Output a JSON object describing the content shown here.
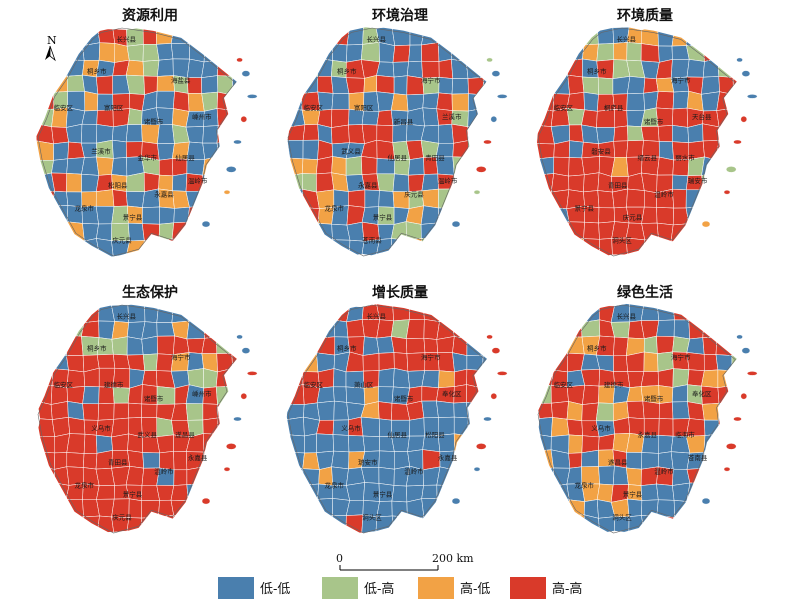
{
  "panels": [
    {
      "title": "资源利用",
      "labels": [
        "长兴县",
        "桐乡市",
        "海盐县",
        "临安区",
        "富阳区",
        "诸暨市",
        "嵊州市",
        "兰溪市",
        "金华市",
        "仙居县",
        "松阳县",
        "龙泉市",
        "景宁县",
        "永嘉县",
        "温岭市",
        "庆元县"
      ]
    },
    {
      "title": "环境治理",
      "labels": [
        "长兴县",
        "桐乡市",
        "海宁市",
        "临安区",
        "富阳区",
        "新昌县",
        "兰溪市",
        "武义县",
        "仙居县",
        "青田县",
        "永嘉县",
        "龙泉市",
        "景宁县",
        "庆元县",
        "温岭市",
        "苍南县"
      ]
    },
    {
      "title": "环境质量",
      "labels": [
        "长兴县",
        "桐乡市",
        "海宁市",
        "临安区",
        "桐庐县",
        "诸暨市",
        "天台县",
        "磐安县",
        "缙云县",
        "丽水市",
        "青田县",
        "景宁县",
        "庆元县",
        "温岭市",
        "瑞安市",
        "洞头区"
      ]
    },
    {
      "title": "生态保护",
      "labels": [
        "长兴县",
        "桐乡市",
        "海宁市",
        "临安区",
        "建德市",
        "诸暨市",
        "嵊州市",
        "义乌市",
        "武义县",
        "遂昌县",
        "青田县",
        "龙泉市",
        "景宁县",
        "温岭市",
        "永嘉县",
        "庆元县"
      ]
    },
    {
      "title": "增长质量",
      "labels": [
        "长兴县",
        "桐乡市",
        "海宁市",
        "临安区",
        "萧山区",
        "诸暨市",
        "奉化区",
        "义乌市",
        "仙居县",
        "松阳县",
        "瑞安市",
        "龙泉市",
        "景宁县",
        "温岭市",
        "永嘉县",
        "洞头区"
      ]
    },
    {
      "title": "绿色生活",
      "labels": [
        "长兴县",
        "桐乡市",
        "海宁市",
        "临安区",
        "建德市",
        "诸暨市",
        "奉化区",
        "义乌市",
        "永嘉县",
        "临海市",
        "遂昌县",
        "龙泉市",
        "景宁县",
        "温岭市",
        "苍南县",
        "洞头区"
      ]
    }
  ],
  "north_arrow": {
    "label": "N"
  },
  "scale_bar": {
    "start": "0",
    "end": "200 km"
  },
  "legend": [
    {
      "label": "低-低",
      "color": "#4a7fae"
    },
    {
      "label": "低-高",
      "color": "#a8c58a"
    },
    {
      "label": "高-低",
      "color": "#f2a245"
    },
    {
      "label": "高-高",
      "color": "#d93a2a"
    }
  ],
  "cluster_grids": [
    [
      "HL",
      "HH",
      "LH",
      "LL",
      "HH",
      "HH",
      "LH",
      "HH",
      "HL",
      "LL",
      "HH",
      "LH",
      "HL",
      "LL",
      "LL",
      "LL",
      "LL",
      "LL",
      "HL",
      "HL",
      "LH",
      "LH",
      "LL",
      "LL",
      "LL",
      "LL",
      "HL",
      "HH",
      "HL",
      "LL",
      "LL",
      "HL",
      "LL",
      "HH",
      "HL",
      "LH",
      "LL",
      "LL",
      "LL",
      "LL",
      "HH",
      "HL",
      "HL",
      "HL",
      "LH",
      "LL",
      "HH",
      "LL",
      "LH",
      "HH",
      "HL",
      "LH",
      "HH",
      "LL",
      "LH",
      "LL",
      "HH",
      "LH",
      "LL",
      "HL",
      "LL",
      "HH",
      "HH",
      "LL",
      "LL",
      "HH",
      "HL",
      "LH",
      "HH",
      "HL",
      "LH",
      "HL",
      "LL",
      "LL",
      "HH",
      "HH",
      "LH",
      "LL",
      "LL",
      "HL",
      "LL",
      "LL",
      "HH",
      "HL",
      "HH",
      "HH",
      "LL",
      "LL",
      "LL",
      "LL",
      "LL",
      "HL",
      "LL",
      "LH",
      "LL",
      "LL",
      "HH",
      "HL",
      "HL",
      "LL",
      "HH",
      "LL",
      "LH",
      "LL",
      "HH",
      "HH",
      "LL",
      "HL",
      "LL",
      "LL",
      "LL",
      "LL",
      "LH",
      "LL",
      "LL",
      "LL",
      "HL",
      "LL",
      "LL",
      "LH",
      "HH",
      "HH",
      "LL",
      "HL",
      "LL",
      "LL",
      "LL",
      "HH",
      "HL",
      "LL",
      "HH",
      "HL",
      "LH",
      "HH",
      "HL",
      "LL",
      "HH",
      "LL",
      "LL",
      "LL",
      "HH",
      "LL",
      "LL",
      "HL",
      "HL",
      "HH",
      "LL",
      "LL",
      "HL",
      "HL",
      "LL",
      "LH",
      "LL",
      "HL",
      "LL",
      "LL",
      "LL",
      "LL",
      "LL",
      "LH",
      "HL",
      "LL",
      "LL",
      "LL",
      "HH",
      "LL",
      "HH",
      "LL",
      "LL",
      "LH",
      "HL",
      "LL",
      "LL",
      "LH",
      "LL",
      "HH",
      "LH",
      "HH",
      "HL",
      "HL",
      "HL",
      "LL",
      "LL",
      "LL",
      "HL",
      "LL",
      "LL",
      "LL",
      "HL",
      "HL",
      "HH",
      "HH",
      "LL",
      "LL",
      "LL",
      "HL",
      "LL",
      "LL",
      "LL",
      "LL"
    ],
    [
      "HH",
      "LH",
      "HH",
      "HH",
      "LL",
      "LH",
      "LL",
      "LL",
      "LL",
      "LL",
      "HH",
      "LL",
      "LL",
      "HH",
      "HH",
      "HH",
      "LL",
      "LL",
      "LL",
      "LH",
      "LL",
      "HH",
      "LL",
      "HH",
      "LL",
      "LL",
      "HL",
      "LL",
      "LL",
      "LH",
      "LL",
      "LH",
      "HH",
      "HH",
      "LL",
      "LL",
      "LL",
      "HH",
      "HH",
      "LL",
      "LL",
      "HH",
      "LH",
      "LL",
      "HH",
      "LL",
      "HH",
      "HL",
      "HH",
      "LL",
      "HH",
      "LH",
      "LL",
      "LL",
      "HH",
      "LL",
      "LL",
      "HH",
      "LL",
      "LL",
      "HL",
      "LL",
      "LL",
      "HL",
      "LL",
      "LL",
      "HH",
      "HL",
      "LL",
      "LH",
      "LL",
      "HL",
      "HH",
      "HH",
      "LL",
      "LL",
      "HH",
      "LL",
      "LL",
      "LL",
      "HH",
      "LH",
      "LL",
      "LL",
      "HH",
      "HH",
      "LL",
      "HH",
      "HH",
      "HH",
      "HH",
      "LL",
      "LL",
      "LL",
      "LL",
      "HH",
      "LL",
      "HH",
      "LL",
      "LL",
      "HH",
      "LL",
      "LL",
      "HH",
      "HH",
      "LH",
      "HH",
      "LH",
      "LL",
      "HH",
      "LH",
      "LL",
      "HL",
      "HL",
      "HH",
      "HL",
      "LH",
      "HH",
      "LL",
      "LH",
      "LL",
      "HH",
      "LL",
      "LH",
      "LL",
      "HL",
      "LH",
      "LH",
      "HH",
      "HL",
      "LL",
      "HH",
      "LH",
      "LL",
      "HH",
      "LL",
      "HH",
      "LH",
      "LL",
      "LL",
      "LL",
      "HH",
      "HL",
      "LL",
      "HH",
      "LL",
      "LL",
      "HL",
      "LH",
      "HL",
      "LH",
      "HH",
      "LL",
      "HH",
      "LL",
      "HH",
      "HL",
      "LL",
      "HH",
      "LL",
      "LH",
      "LL",
      "HL",
      "LL",
      "LL",
      "LL",
      "LL",
      "HH",
      "HL",
      "LL",
      "LL",
      "LL",
      "LL",
      "HH",
      "LL",
      "LH",
      "LH",
      "LL",
      "LL",
      "HL",
      "LL",
      "LH",
      "HH",
      "LL",
      "LL",
      "LL",
      "LL",
      "LL",
      "LL",
      "LL",
      "HL",
      "LH",
      "HL",
      "HH",
      "LL",
      "LL",
      "LL",
      "HH",
      "HH",
      "LL",
      "LL",
      "LL"
    ],
    [
      "LL",
      "LH",
      "LL",
      "LH",
      "LL",
      "LL",
      "HL",
      "HL",
      "LL",
      "HL",
      "LL",
      "LL",
      "LL",
      "LL",
      "LL",
      "LL",
      "LL",
      "HL",
      "LH",
      "HL",
      "LH",
      "HH",
      "LL",
      "LL",
      "LH",
      "HH",
      "LL",
      "LL",
      "LL",
      "LL",
      "HH",
      "LL",
      "HH",
      "LH",
      "LH",
      "LL",
      "HH",
      "LL",
      "LL",
      "LL",
      "LH",
      "HH",
      "HH",
      "LL",
      "HH",
      "LH",
      "LH",
      "LL",
      "LL",
      "HH",
      "HL",
      "LL",
      "HH",
      "LL",
      "HH",
      "HH",
      "HH",
      "HH",
      "HH",
      "LL",
      "HH",
      "HH",
      "LL",
      "LL",
      "HH",
      "LL",
      "HL",
      "LL",
      "HH",
      "HH",
      "HH",
      "HH",
      "LH",
      "HH",
      "HH",
      "HH",
      "LL",
      "LH",
      "HH",
      "HH",
      "HH",
      "HH",
      "HH",
      "HH",
      "HH",
      "LL",
      "HH",
      "LL",
      "LL",
      "HH",
      "LH",
      "HH",
      "HH",
      "LL",
      "LL",
      "HH",
      "HH",
      "HH",
      "HH",
      "HH",
      "LL",
      "HH",
      "HH",
      "HH",
      "HH",
      "HH",
      "LL",
      "HH",
      "HH",
      "HH",
      "HH",
      "HH",
      "LL",
      "HH",
      "HH",
      "HH",
      "HH",
      "HL",
      "HH",
      "HH",
      "HH",
      "HH",
      "LH",
      "LL",
      "HL",
      "HH",
      "HH",
      "HH",
      "HH",
      "HH",
      "HH",
      "HH",
      "HH",
      "HH",
      "HH",
      "LL",
      "HH",
      "LH",
      "LL",
      "LL",
      "LL",
      "HH",
      "HH",
      "HH",
      "HH",
      "HH",
      "HH",
      "HH",
      "HH",
      "HH",
      "LL",
      "HH",
      "LL",
      "HH",
      "HH",
      "LL",
      "HH",
      "HH",
      "HH",
      "HH",
      "HH",
      "HH",
      "HH",
      "HH",
      "LL",
      "LL",
      "HH",
      "HH",
      "HH",
      "HH",
      "HH",
      "HH",
      "HH",
      "HH",
      "HH",
      "HH",
      "HH",
      "HH",
      "HH",
      "HH",
      "HH",
      "HH",
      "HH",
      "HH",
      "HL",
      "HH",
      "HH",
      "HH",
      "HH",
      "HH",
      "HH",
      "HH",
      "HH",
      "HH",
      "HH",
      "HH",
      "HH",
      "HH",
      "HH",
      "HH"
    ],
    [
      "LL",
      "HH",
      "LL",
      "HH",
      "LL",
      "LL",
      "LL",
      "LL",
      "LL",
      "LL",
      "LL",
      "LL",
      "LL",
      "HH",
      "LL",
      "LL",
      "LH",
      "HH",
      "LL",
      "HL",
      "LL",
      "LL",
      "LL",
      "HL",
      "LL",
      "HH",
      "HH",
      "HH",
      "LL",
      "LL",
      "HH",
      "LH",
      "LH",
      "LH",
      "LL",
      "LL",
      "HH",
      "HH",
      "HH",
      "HH",
      "LH",
      "HH",
      "HL",
      "LL",
      "HH",
      "HH",
      "HH",
      "HH",
      "HH",
      "LH",
      "HH",
      "HL",
      "LL",
      "HL",
      "HH",
      "HH",
      "HH",
      "HH",
      "HH",
      "HH",
      "HH",
      "HH",
      "LL",
      "HH",
      "HH",
      "LL",
      "LH",
      "LH",
      "HH",
      "LH",
      "HH",
      "HH",
      "HH",
      "LL",
      "HH",
      "LH",
      "HH",
      "HH",
      "LH",
      "HH",
      "LL",
      "HH",
      "LH",
      "HH",
      "HH",
      "HH",
      "LL",
      "HH",
      "HH",
      "HH",
      "HH",
      "HH",
      "HH",
      "HH",
      "LH",
      "HH",
      "HH",
      "LH",
      "HH",
      "HH",
      "HH",
      "HH",
      "HH",
      "HH",
      "HH",
      "HH",
      "LH",
      "HH",
      "LH",
      "HH",
      "HH",
      "HH",
      "HH",
      "HH",
      "HH",
      "HH",
      "LL",
      "HH",
      "HH",
      "HH",
      "HH",
      "HH",
      "HH",
      "HH",
      "HH",
      "HH",
      "HH",
      "HH",
      "HH",
      "HH",
      "HH",
      "HH",
      "HH",
      "LL",
      "HH",
      "HH",
      "HH",
      "HH",
      "HH",
      "HH",
      "HH",
      "HH",
      "HH",
      "HH",
      "HH",
      "HH",
      "HH",
      "HH",
      "LL",
      "HH",
      "HH",
      "LL",
      "HH",
      "HH",
      "HH",
      "HH",
      "HH",
      "HH",
      "HH",
      "HH",
      "HH",
      "HH",
      "HH",
      "HH",
      "LL",
      "HH",
      "HH",
      "HH",
      "HH",
      "HH",
      "HH",
      "HH",
      "HH",
      "HH",
      "HH",
      "HH",
      "HH",
      "HH",
      "HH",
      "HH",
      "HH",
      "HH",
      "HH",
      "HH",
      "HH",
      "HH",
      "HH",
      "HH",
      "HH",
      "HH",
      "HH",
      "HH",
      "HH",
      "HH",
      "HH",
      "HH",
      "HH",
      "HH",
      "HH",
      "HH",
      "HH",
      "HH",
      "HH",
      "HH"
    ],
    [
      "HH",
      "HL",
      "LL",
      "HH",
      "LL",
      "HH",
      "HH",
      "HH",
      "HH",
      "HH",
      "HH",
      "LL",
      "HH",
      "HH",
      "HH",
      "HH",
      "LL",
      "LL",
      "HH",
      "HH",
      "HH",
      "LH",
      "HH",
      "HH",
      "HH",
      "HH",
      "HH",
      "HH",
      "HH",
      "HH",
      "HH",
      "LL",
      "HH",
      "LL",
      "LL",
      "HH",
      "HH",
      "HH",
      "HH",
      "HH",
      "LL",
      "LL",
      "HH",
      "HL",
      "LL",
      "LL",
      "HH",
      "HH",
      "HH",
      "HH",
      "HH",
      "HH",
      "HH",
      "LL",
      "LL",
      "LL",
      "HH",
      "HH",
      "HH",
      "LL",
      "LL",
      "HH",
      "LL",
      "LL",
      "LL",
      "LL",
      "HL",
      "HH",
      "HH",
      "HH",
      "HH",
      "HH",
      "LL",
      "LL",
      "LL",
      "HL",
      "LL",
      "LL",
      "HH",
      "HH",
      "HH",
      "HH",
      "HH",
      "LL",
      "LL",
      "LL",
      "LL",
      "LL",
      "LL",
      "HL",
      "HH",
      "HH",
      "HH",
      "LL",
      "LL",
      "LL",
      "LL",
      "LL",
      "LL",
      "LL",
      "HH",
      "LL",
      "HH",
      "LL",
      "LL",
      "LL",
      "LL",
      "LL",
      "LL",
      "LL",
      "LL",
      "LL",
      "LL",
      "LL",
      "LL",
      "LL",
      "LL",
      "LL",
      "LL",
      "LL",
      "LL",
      "LL",
      "LL",
      "HL",
      "LL",
      "LL",
      "LL",
      "HL",
      "LL",
      "LL",
      "HL",
      "LL",
      "LL",
      "LL",
      "LL",
      "HH",
      "LL",
      "LL",
      "LL",
      "LL",
      "LL",
      "LL",
      "HL",
      "LL",
      "LL",
      "LL",
      "LL",
      "LL",
      "LL",
      "LL",
      "LL",
      "LL",
      "LL",
      "LL",
      "LL",
      "LL",
      "LL",
      "LL",
      "LL",
      "LL",
      "LL",
      "LL",
      "LL",
      "LL",
      "LL",
      "LL",
      "LL",
      "HL",
      "LL",
      "LL",
      "LL",
      "LL",
      "LL",
      "LL",
      "LL",
      "LL",
      "LL",
      "LL",
      "LL",
      "LL",
      "LL",
      "LL",
      "LL",
      "LL",
      "LL",
      "LL",
      "HH",
      "LL",
      "LL",
      "LL",
      "LL",
      "LL",
      "LL",
      "LL",
      "LL",
      "LL",
      "LL",
      "LL",
      "HL",
      "LL",
      "LL",
      "LL",
      "LL",
      "LL"
    ],
    [
      "LL",
      "HH",
      "HH",
      "LL",
      "HH",
      "LL",
      "LL",
      "LL",
      "LL",
      "HH",
      "LL",
      "LH",
      "LL",
      "LL",
      "HH",
      "HH",
      "HH",
      "LH",
      "HH",
      "LH",
      "HH",
      "HH",
      "LL",
      "LL",
      "HH",
      "HH",
      "HH",
      "HH",
      "HH",
      "HH",
      "HL",
      "HL",
      "HH",
      "HH",
      "HL",
      "LH",
      "HH",
      "LH",
      "LL",
      "HH",
      "HH",
      "HH",
      "HH",
      "HH",
      "HH",
      "LL",
      "LL",
      "HH",
      "HH",
      "HL",
      "LH",
      "HH",
      "HH",
      "HH",
      "LL",
      "LH",
      "HH",
      "HH",
      "LL",
      "HH",
      "HH",
      "HH",
      "HH",
      "HH",
      "HH",
      "LH",
      "HH",
      "HL",
      "HL",
      "HL",
      "LH",
      "HH",
      "HH",
      "HH",
      "HL",
      "LL",
      "HL",
      "HL",
      "HL",
      "LL",
      "LH",
      "HH",
      "HH",
      "HL",
      "HH",
      "HH",
      "HL",
      "HH",
      "LH",
      "HL",
      "HH",
      "HH",
      "HH",
      "LL",
      "HH",
      "HL",
      "LL",
      "LL",
      "LL",
      "HL",
      "HH",
      "HH",
      "LL",
      "HH",
      "HH",
      "HH",
      "HH",
      "HH",
      "HH",
      "LL",
      "HH",
      "LL",
      "LL",
      "LL",
      "HL",
      "HH",
      "HH",
      "HL",
      "HL",
      "LL",
      "LL",
      "LL",
      "HL",
      "LL",
      "LL",
      "LL",
      "HL",
      "LL",
      "HH",
      "LL",
      "HL",
      "HH",
      "LL",
      "LL",
      "LL",
      "LL",
      "LL",
      "LL",
      "HH",
      "HL",
      "LL",
      "LL",
      "LL",
      "HL",
      "LL",
      "LL",
      "HL",
      "HH",
      "HH",
      "LL",
      "HH",
      "HL",
      "HL",
      "LL",
      "LL",
      "LL",
      "LL",
      "HL",
      "HL",
      "HH",
      "HL",
      "LL",
      "LL",
      "LL",
      "LL",
      "LL",
      "LL",
      "HL",
      "LL",
      "LL",
      "HL",
      "LL",
      "LL",
      "HL",
      "LL",
      "LL",
      "LL",
      "LL",
      "LL",
      "LL",
      "LL",
      "LL",
      "LL",
      "LL",
      "HL",
      "LL",
      "LL",
      "LL",
      "LL",
      "LL",
      "HH",
      "LL",
      "LL",
      "LL",
      "LL",
      "LL",
      "LL",
      "LL",
      "HL",
      "LL",
      "LL",
      "LL",
      "LL",
      "LL",
      "LL",
      "LL"
    ]
  ]
}
